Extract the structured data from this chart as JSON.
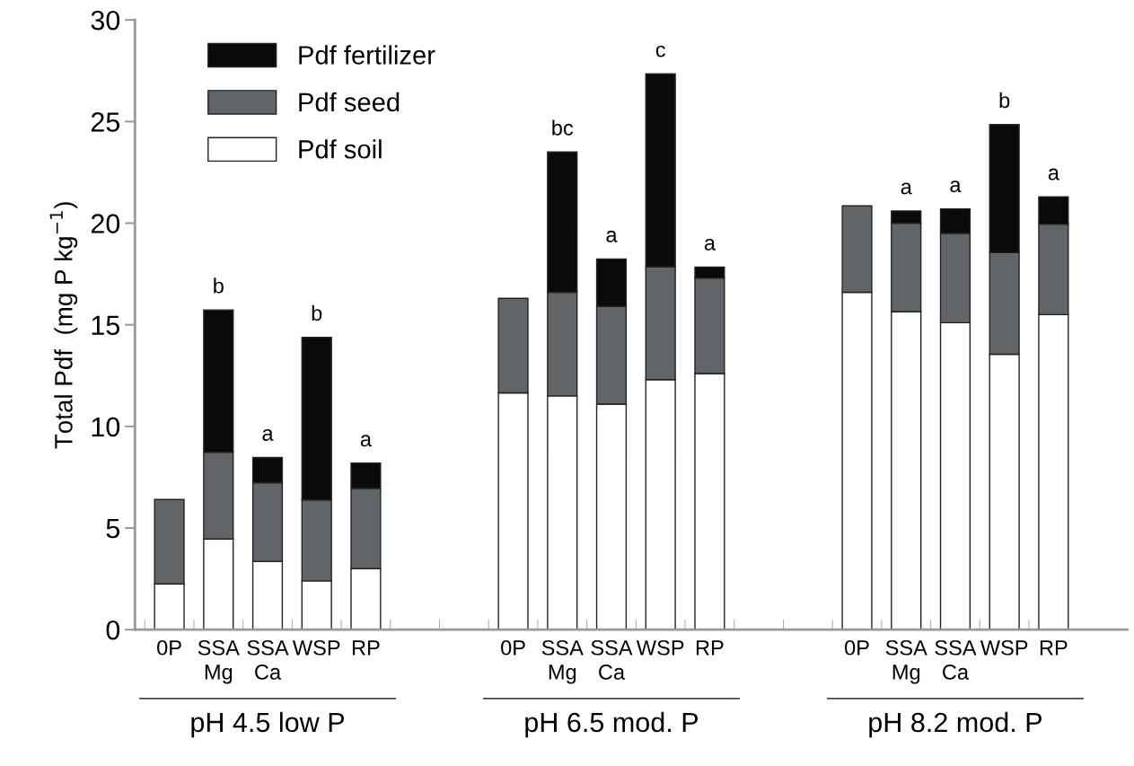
{
  "chart_data": {
    "type": "bar",
    "stacked": true,
    "ylabel": "Total Pdf  (mg P kg$^{−1}$)",
    "categories": [
      "0P",
      "SSA\nMg",
      "SSA\nCa",
      "WSP",
      "RP",
      null,
      null,
      "0P",
      "SSA\nMg",
      "SSA\nCa",
      "WSP",
      "RP",
      null,
      null,
      "0P",
      "SSA\nMg",
      "SSA\nCa",
      "WSP",
      "RP"
    ],
    "series": [
      {
        "name": "Pdf soil",
        "color": "#ffffff",
        "values": [
          2.25,
          4.46,
          3.36,
          2.4,
          3.0,
          null,
          null,
          11.65,
          11.5,
          11.1,
          12.3,
          12.6,
          null,
          null,
          16.6,
          15.65,
          15.1,
          13.55,
          15.5
        ]
      },
      {
        "name": "Pdf seed",
        "color": "#626567",
        "values": [
          4.15,
          4.27,
          3.87,
          3.98,
          3.95,
          null,
          null,
          4.65,
          5.1,
          4.8,
          5.55,
          4.7,
          null,
          null,
          4.25,
          4.35,
          4.4,
          5.0,
          4.45
        ]
      },
      {
        "name": "Pdf fertilizer",
        "color": "#0a0a0a",
        "values": [
          null,
          7.0,
          1.24,
          8.0,
          1.24,
          null,
          null,
          null,
          6.9,
          2.34,
          9.5,
          0.54,
          null,
          null,
          null,
          0.6,
          1.2,
          6.3,
          1.35
        ]
      }
    ],
    "ylim": [
      0,
      30
    ],
    "yticks": [
      0,
      5,
      10,
      15,
      20,
      25,
      30
    ],
    "grid": false,
    "legend": "top left",
    "annotations": [
      "b",
      "a",
      "b",
      "a",
      "bc",
      "a",
      "c",
      "a",
      "a",
      "a",
      "b",
      "a",
      "pH 4.5 low P",
      "pH 6.5 mod. P",
      "pH 8.2 mod. P"
    ]
  }
}
